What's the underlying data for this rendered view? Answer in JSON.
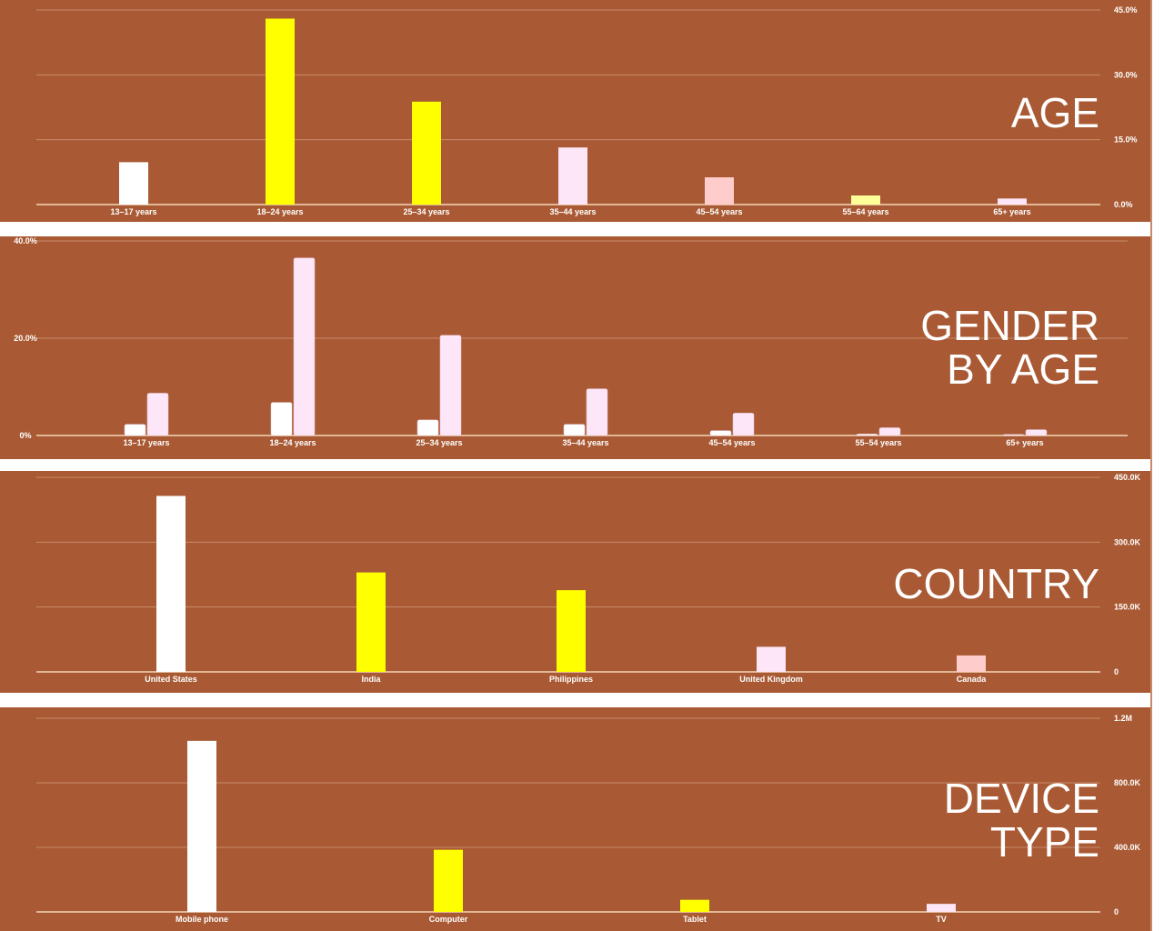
{
  "panels": [
    {
      "title": "AGE"
    },
    {
      "title": "GENDER\nBY AGE"
    },
    {
      "title": "COUNTRY"
    },
    {
      "title": "DEVICE\nTYPE"
    }
  ],
  "colors": {
    "background": "#a95a34",
    "gridline": "#c98a6a",
    "baseline": "#f3d6b8",
    "bar_white": "#ffffff",
    "bar_yellow": "#ffff00",
    "bar_lightpink": "#fde6f7",
    "bar_pink": "#ffcccc",
    "bar_lightyellow": "#ffff99",
    "tick_text": "#ffffff"
  },
  "chart_data": [
    {
      "type": "bar",
      "title": "AGE",
      "categories": [
        "13–17 years",
        "18–24 years",
        "25–34 years",
        "35–44 years",
        "45–54 years",
        "55–64 years",
        "65+ years"
      ],
      "values": [
        9.8,
        43.0,
        23.8,
        13.2,
        6.3,
        2.1,
        1.4
      ],
      "bar_colors": [
        "#ffffff",
        "#ffff00",
        "#ffff00",
        "#fde6f7",
        "#ffcccc",
        "#ffff99",
        "#fde6f7"
      ],
      "ylim": [
        0,
        45
      ],
      "yticks": [
        "0.0%",
        "15.0%",
        "30.0%",
        "45.0%"
      ],
      "ytick_values": [
        0,
        15,
        30,
        45
      ],
      "yaxis_side": "right",
      "grid": true
    },
    {
      "type": "bar",
      "title": "GENDER BY AGE",
      "categories": [
        "13–17 years",
        "18–24 years",
        "25–34 years",
        "35–44 years",
        "45–54 years",
        "55–54 years",
        "65+ years"
      ],
      "series": [
        {
          "values": [
            2.3,
            6.8,
            3.2,
            2.3,
            1.0,
            0.3,
            0.2
          ],
          "color": "#ffffff"
        },
        {
          "values": [
            8.7,
            36.5,
            20.6,
            9.6,
            4.6,
            1.6,
            1.2
          ],
          "color": "#fde6f7"
        }
      ],
      "ylim": [
        0,
        40
      ],
      "yticks": [
        "0%",
        "20.0%",
        "40.0%"
      ],
      "ytick_values": [
        0,
        20,
        40
      ],
      "yaxis_side": "left",
      "grid": true
    },
    {
      "type": "bar",
      "title": "COUNTRY",
      "categories": [
        "United States",
        "India",
        "Philippines",
        "United Kingdom",
        "Canada"
      ],
      "values": [
        407000,
        230000,
        189000,
        58000,
        38000
      ],
      "bar_colors": [
        "#ffffff",
        "#ffff00",
        "#ffff00",
        "#fde6f7",
        "#ffcccc"
      ],
      "ylim": [
        0,
        450000
      ],
      "yticks": [
        "0",
        "150.0K",
        "300.0K",
        "450.0K"
      ],
      "ytick_values": [
        0,
        150000,
        300000,
        450000
      ],
      "yaxis_side": "right",
      "grid": true
    },
    {
      "type": "bar",
      "title": "DEVICE TYPE",
      "categories": [
        "Mobile phone",
        "Computer",
        "Tablet",
        "TV"
      ],
      "values": [
        1060000,
        385000,
        75000,
        50000
      ],
      "bar_colors": [
        "#ffffff",
        "#ffff00",
        "#ffff00",
        "#fde6f7"
      ],
      "ylim": [
        0,
        1200000
      ],
      "yticks": [
        "0",
        "400.0K",
        "800.0K",
        "1.2M"
      ],
      "ytick_values": [
        0,
        400000,
        800000,
        1200000
      ],
      "yaxis_side": "right",
      "grid": true
    }
  ]
}
